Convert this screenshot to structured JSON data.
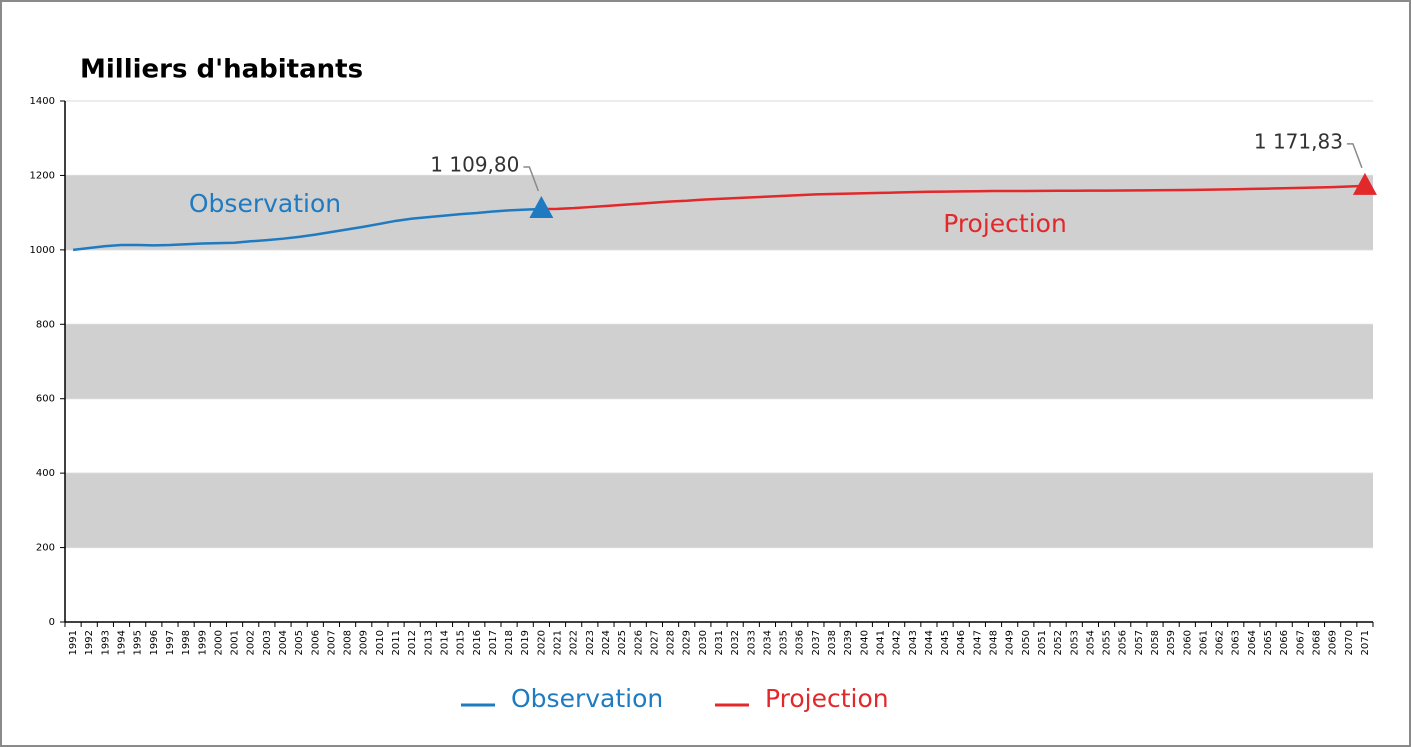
{
  "chart_data": {
    "type": "line",
    "title": "Milliers d'habitants",
    "categories": [
      "1991",
      "1992",
      "1993",
      "1994",
      "1995",
      "1996",
      "1997",
      "1998",
      "1999",
      "2000",
      "2001",
      "2002",
      "2003",
      "2004",
      "2005",
      "2006",
      "2007",
      "2008",
      "2009",
      "2010",
      "2011",
      "2012",
      "2013",
      "2014",
      "2015",
      "2016",
      "2017",
      "2018",
      "2019",
      "2020",
      "2021",
      "2022",
      "2023",
      "2024",
      "2025",
      "2026",
      "2027",
      "2028",
      "2029",
      "2030",
      "2031",
      "2032",
      "2033",
      "2034",
      "2035",
      "2036",
      "2037",
      "2038",
      "2039",
      "2040",
      "2041",
      "2042",
      "2043",
      "2044",
      "2045",
      "2046",
      "2047",
      "2048",
      "2049",
      "2050",
      "2051",
      "2052",
      "2053",
      "2054",
      "2055",
      "2056",
      "2057",
      "2058",
      "2059",
      "2060",
      "2061",
      "2062",
      "2063",
      "2064",
      "2065",
      "2066",
      "2067",
      "2068",
      "2069",
      "2070",
      "2071"
    ],
    "series": [
      {
        "name": "Observation",
        "color": "#1f7bc1",
        "values": [
          1000,
          1005,
          1010,
          1013,
          1013,
          1012,
          1013,
          1015,
          1017,
          1018,
          1019,
          1023,
          1026,
          1030,
          1035,
          1041,
          1048,
          1055,
          1062,
          1070,
          1078,
          1084,
          1088,
          1092,
          1096,
          1099,
          1103,
          1106,
          1108,
          1109.8,
          null,
          null,
          null,
          null,
          null,
          null,
          null,
          null,
          null,
          null,
          null,
          null,
          null,
          null,
          null,
          null,
          null,
          null,
          null,
          null,
          null,
          null,
          null,
          null,
          null,
          null,
          null,
          null,
          null,
          null,
          null,
          null,
          null,
          null,
          null,
          null,
          null,
          null,
          null,
          null,
          null,
          null,
          null,
          null,
          null,
          null,
          null,
          null,
          null,
          null,
          null
        ],
        "value_labels": [
          null,
          null,
          null,
          null,
          null,
          null,
          null,
          null,
          null,
          null,
          null,
          null,
          null,
          null,
          null,
          null,
          null,
          null,
          null,
          null,
          null,
          null,
          null,
          null,
          null,
          null,
          null,
          null,
          null,
          "1 109,80",
          null,
          null,
          null,
          null,
          null,
          null,
          null,
          null,
          null,
          null,
          null,
          null,
          null,
          null,
          null,
          null,
          null,
          null,
          null,
          null,
          null,
          null,
          null,
          null,
          null,
          null,
          null,
          null,
          null,
          null,
          null,
          null,
          null,
          null,
          null,
          null,
          null,
          null,
          null,
          null,
          null,
          null,
          null,
          null,
          null,
          null,
          null,
          null,
          null,
          null,
          null
        ]
      },
      {
        "name": "Projection",
        "color": "#e2282b",
        "values": [
          null,
          null,
          null,
          null,
          null,
          null,
          null,
          null,
          null,
          null,
          null,
          null,
          null,
          null,
          null,
          null,
          null,
          null,
          null,
          null,
          null,
          null,
          null,
          null,
          null,
          null,
          null,
          null,
          null,
          1109.8,
          1110,
          1112,
          1115,
          1118,
          1121,
          1124,
          1127,
          1130,
          1132,
          1135,
          1137,
          1139,
          1141,
          1143,
          1145,
          1147,
          1149,
          1150,
          1151,
          1152,
          1153,
          1154,
          1155,
          1156,
          1156.5,
          1157,
          1157.5,
          1158,
          1158.1,
          1158.3,
          1158.5,
          1158.7,
          1158.9,
          1159.1,
          1159.3,
          1159.5,
          1159.8,
          1160.1,
          1160.5,
          1161,
          1161.6,
          1162.3,
          1163,
          1163.8,
          1164.6,
          1165.5,
          1166.4,
          1167.4,
          1168.6,
          1170.1,
          1171.83
        ],
        "value_labels": [
          null,
          null,
          null,
          null,
          null,
          null,
          null,
          null,
          null,
          null,
          null,
          null,
          null,
          null,
          null,
          null,
          null,
          null,
          null,
          null,
          null,
          null,
          null,
          null,
          null,
          null,
          null,
          null,
          null,
          null,
          null,
          null,
          null,
          null,
          null,
          null,
          null,
          null,
          null,
          null,
          null,
          null,
          null,
          null,
          null,
          null,
          null,
          null,
          null,
          null,
          null,
          null,
          null,
          null,
          null,
          null,
          null,
          null,
          null,
          null,
          null,
          null,
          null,
          null,
          null,
          null,
          null,
          null,
          null,
          null,
          null,
          null,
          null,
          null,
          null,
          null,
          null,
          null,
          null,
          null,
          "1 171,83"
        ]
      }
    ],
    "ylim": [
      0,
      1400
    ],
    "yticks": [
      0,
      200,
      400,
      600,
      800,
      1000,
      1200,
      1400
    ],
    "grid": "bands",
    "legend": "bottom"
  }
}
